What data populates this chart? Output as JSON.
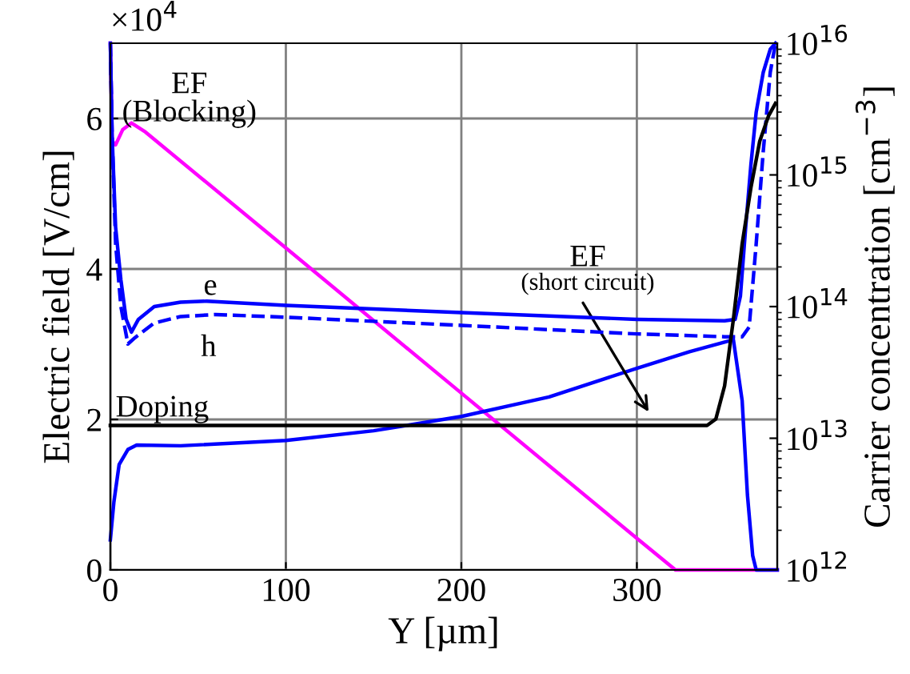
{
  "chart_data": {
    "type": "line",
    "xlabel": "Y [µm]",
    "ylabel": "Electric field [V/cm]",
    "y2label": "Carrier concentration [cm$^{−3}$]",
    "annotations": [
      "×10$^{4}$"
    ],
    "xlim": [
      0,
      380
    ],
    "xticks": [
      0,
      100,
      200,
      300
    ],
    "ylim": [
      0,
      7
    ],
    "yticks": [
      0,
      2,
      4,
      6
    ],
    "y2lim": [
      1000000000000.0,
      1e+16
    ],
    "y2ticks": [
      {
        "value": 1000000000000.0,
        "label": "10$^{12}$"
      },
      {
        "value": 10000000000000.0,
        "label": "10$^{13}$"
      },
      {
        "value": 100000000000000.0,
        "label": "10$^{14}$"
      },
      {
        "value": 1000000000000000.0,
        "label": "10$^{15}$"
      },
      {
        "value": 1e+16,
        "label": "10$^{16}$"
      }
    ],
    "log": "y2",
    "grid": true,
    "legend": false,
    "marker": "none",
    "series": [
      {
        "name": "EF\n(Blocking)",
        "color": "#ff00ff",
        "line_style": "solid",
        "x": [
          0,
          1,
          3,
          7,
          12,
          20,
          100,
          200,
          300,
          322,
          380
        ],
        "values": [
          7,
          5.7,
          5.65,
          5.85,
          5.94,
          5.82,
          4.28,
          2.35,
          0.42,
          0,
          0
        ]
      },
      {
        "name": "e",
        "color": "#0000ff",
        "line_style": "solid",
        "axis": "y2",
        "x": [
          0,
          1,
          3,
          6,
          9,
          12,
          16,
          25,
          40,
          55,
          100,
          200,
          300,
          350,
          356,
          359,
          362,
          365,
          368,
          372,
          376,
          379
        ],
        "values": [
          1e+16,
          2000000000000000.0,
          400000000000000.0,
          160000000000000.0,
          80000000000000.0,
          64000000000000.0,
          80000000000000.0,
          100000000000000.0,
          108000000000000.0,
          110000000000000.0,
          102000000000000.0,
          90000000000000.0,
          80000000000000.0,
          78000000000000.0,
          80000000000000.0,
          120000000000000.0,
          400000000000000.0,
          1200000000000000.0,
          3000000000000000.0,
          6000000000000000.0,
          9000000000000000.0,
          1e+16
        ]
      },
      {
        "name": "h",
        "color": "#0000ff",
        "line_style": "dashed",
        "axis": "y2",
        "x": [
          0,
          1,
          3,
          6,
          10,
          14,
          25,
          40,
          60,
          100,
          200,
          300,
          350,
          360,
          364,
          368,
          372,
          376,
          379
        ],
        "values": [
          1e+16,
          2000000000000000.0,
          300000000000000.0,
          100000000000000.0,
          52000000000000.0,
          58000000000000.0,
          75000000000000.0,
          84000000000000.0,
          87000000000000.0,
          83000000000000.0,
          72000000000000.0,
          62000000000000.0,
          59000000000000.0,
          59000000000000.0,
          70000000000000.0,
          300000000000000.0,
          1500000000000000.0,
          6000000000000000.0,
          1e+16
        ]
      },
      {
        "name": "Doping",
        "color": "#000000",
        "line_style": "solid",
        "axis": "y2",
        "x": [
          0,
          340,
          345,
          350,
          355,
          360,
          365,
          370,
          375,
          379
        ],
        "values": [
          12500000000000.0,
          12500000000000.0,
          14000000000000.0,
          25000000000000.0,
          80000000000000.0,
          300000000000000.0,
          800000000000000.0,
          1800000000000000.0,
          2800000000000000.0,
          3500000000000000.0
        ]
      },
      {
        "name": "EF\n(short circuit)",
        "color": "#0000ff",
        "line_style": "solid",
        "x": [
          0,
          2,
          5,
          10,
          15,
          40,
          100,
          150,
          200,
          250,
          300,
          330,
          355,
          360,
          363,
          366,
          368,
          380
        ],
        "values": [
          0.4,
          0.9,
          1.4,
          1.6,
          1.66,
          1.65,
          1.72,
          1.85,
          2.04,
          2.3,
          2.68,
          2.9,
          3.06,
          2.25,
          1.0,
          0.19,
          0,
          0
        ]
      }
    ]
  }
}
